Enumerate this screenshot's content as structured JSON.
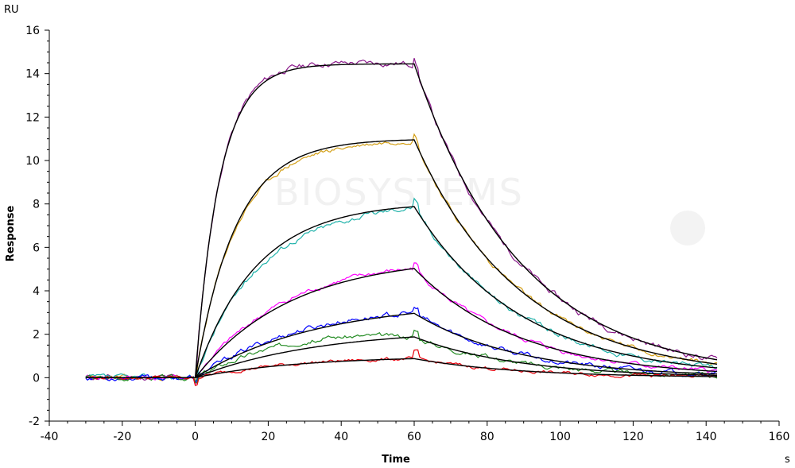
{
  "chart_data": {
    "type": "line",
    "xlabel": "Time",
    "ylabel": "Response",
    "x_unit": "s",
    "y_unit": "RU",
    "xlim": [
      -40,
      160
    ],
    "ylim": [
      -2,
      16
    ],
    "x_ticks": [
      -40,
      -20,
      0,
      20,
      40,
      60,
      80,
      100,
      120,
      140,
      160
    ],
    "y_ticks": [
      -2,
      0,
      2,
      4,
      6,
      8,
      10,
      12,
      14,
      16
    ],
    "grid": false,
    "watermark": "BIOSYSTEMS",
    "injection_start": 0,
    "dissociation_start": 60,
    "end_time": 143,
    "fit_color": "#000000",
    "series": [
      {
        "color": "#8B1A8B",
        "ka": 0.15,
        "kd": 0.0345,
        "rmax": 14.45,
        "noise": 0.1,
        "dev": 0.08,
        "seed": 11,
        "key_points": [
          [
            -30,
            0.05
          ],
          [
            0,
            0.0
          ],
          [
            10,
            11.4
          ],
          [
            20,
            13.9
          ],
          [
            40,
            14.5
          ],
          [
            60,
            14.4
          ],
          [
            61,
            14.7
          ],
          [
            80,
            7.3
          ],
          [
            100,
            3.8
          ],
          [
            120,
            1.9
          ],
          [
            143,
            0.9
          ]
        ]
      },
      {
        "color": "#D4A017",
        "ka": 0.09,
        "kd": 0.0345,
        "rmax": 11.0,
        "noise": 0.08,
        "dev": -0.15,
        "seed": 23,
        "key_points": [
          [
            -30,
            0.05
          ],
          [
            0,
            0.0
          ],
          [
            20,
            9.5
          ],
          [
            40,
            10.9
          ],
          [
            60,
            10.9
          ],
          [
            80,
            5.4
          ],
          [
            100,
            2.8
          ],
          [
            120,
            1.3
          ],
          [
            143,
            0.7
          ]
        ]
      },
      {
        "color": "#20B2AA",
        "ka": 0.06,
        "kd": 0.0345,
        "rmax": 8.1,
        "noise": 0.09,
        "dev": -0.2,
        "seed": 37,
        "key_points": [
          [
            -30,
            0.05
          ],
          [
            0,
            0.0
          ],
          [
            20,
            6.0
          ],
          [
            40,
            7.6
          ],
          [
            60,
            7.8
          ],
          [
            80,
            3.6
          ],
          [
            100,
            1.8
          ],
          [
            120,
            0.9
          ],
          [
            143,
            0.5
          ]
        ]
      },
      {
        "color": "#FF00FF",
        "ka": 0.038,
        "kd": 0.0345,
        "rmax": 5.6,
        "noise": 0.08,
        "dev": 0.1,
        "seed": 41,
        "key_points": [
          [
            -30,
            0.1
          ],
          [
            0,
            0.0
          ],
          [
            20,
            3.2
          ],
          [
            40,
            4.5
          ],
          [
            60,
            5.1
          ],
          [
            80,
            2.8
          ],
          [
            100,
            1.5
          ],
          [
            120,
            0.9
          ],
          [
            143,
            0.55
          ]
        ]
      },
      {
        "color": "#0000FF",
        "ka": 0.03,
        "kd": 0.0345,
        "rmax": 3.55,
        "noise": 0.09,
        "dev": 0.12,
        "seed": 53,
        "key_points": [
          [
            -30,
            0.1
          ],
          [
            0,
            0.0
          ],
          [
            20,
            1.8
          ],
          [
            40,
            2.5
          ],
          [
            60,
            2.9
          ],
          [
            80,
            1.5
          ],
          [
            100,
            0.8
          ],
          [
            120,
            0.45
          ],
          [
            143,
            0.3
          ]
        ]
      },
      {
        "color": "#228B22",
        "ka": 0.03,
        "kd": 0.0345,
        "rmax": 2.25,
        "noise": 0.08,
        "dev": 0.35,
        "seed": 67,
        "key_points": [
          [
            -30,
            0.05
          ],
          [
            0,
            0.0
          ],
          [
            20,
            1.2
          ],
          [
            40,
            1.9
          ],
          [
            60,
            2.3
          ],
          [
            80,
            1.2
          ],
          [
            100,
            0.7
          ],
          [
            120,
            0.4
          ],
          [
            143,
            0.25
          ]
        ]
      },
      {
        "color": "#E8000B",
        "ka": 0.035,
        "kd": 0.0345,
        "rmax": 1.0,
        "noise": 0.06,
        "dev": 0.02,
        "seed": 79,
        "key_points": [
          [
            -30,
            0.05
          ],
          [
            0,
            0.0
          ],
          [
            20,
            0.6
          ],
          [
            40,
            0.85
          ],
          [
            60,
            0.9
          ],
          [
            80,
            0.5
          ],
          [
            100,
            0.3
          ],
          [
            120,
            0.18
          ],
          [
            143,
            0.12
          ]
        ]
      }
    ]
  }
}
